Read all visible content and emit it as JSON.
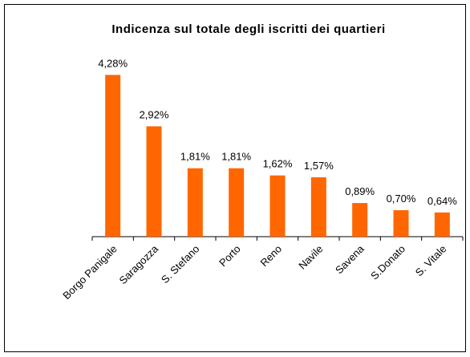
{
  "chart_data": {
    "type": "bar",
    "title": "Indicenza sul totale degli iscritti dei quartieri",
    "categories": [
      "Borgo Panigale",
      "Saragozza",
      "S. Stefano",
      "Porto",
      "Reno",
      "Navile",
      "Savena",
      "S.Donato",
      "S. Vitale"
    ],
    "values": [
      4.28,
      2.92,
      1.81,
      1.81,
      1.62,
      1.57,
      0.89,
      0.7,
      0.64
    ],
    "value_labels": [
      "4,28%",
      "2,92%",
      "1,81%",
      "1,81%",
      "1,62%",
      "1,57%",
      "0,89%",
      "0,70%",
      "0,64%"
    ],
    "color": "#ff6600",
    "ylim": [
      0,
      4.5
    ]
  }
}
